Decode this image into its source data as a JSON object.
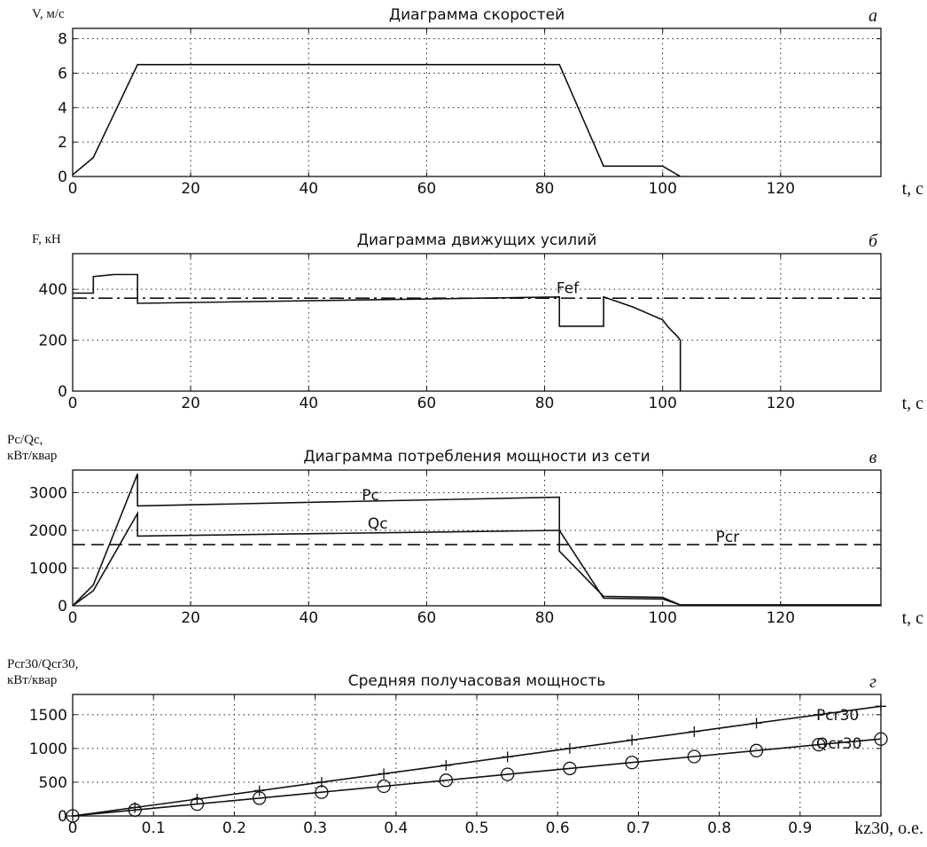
{
  "chart_data": [
    {
      "type": "line",
      "panel_letter": "а",
      "title": "Диаграмма скоростей",
      "ylabel": [
        "V, м/с"
      ],
      "xlabel": "t, с",
      "xlim": [
        0,
        137
      ],
      "ylim": [
        0,
        8.6
      ],
      "xticks": [
        0,
        20,
        40,
        60,
        80,
        100,
        120
      ],
      "yticks": [
        0,
        2,
        4,
        6,
        8
      ],
      "grid": true,
      "series": [
        {
          "style": "solid",
          "x": [
            0,
            3.5,
            11,
            82.5,
            90,
            100,
            101,
            103
          ],
          "y": [
            0.1,
            1.1,
            6.5,
            6.5,
            0.6,
            0.6,
            0.4,
            0
          ]
        }
      ]
    },
    {
      "type": "line",
      "panel_letter": "б",
      "title": "Диаграмма движущих усилий",
      "ylabel": [
        "F, кН"
      ],
      "xlabel": "t, с",
      "xlim": [
        0,
        137
      ],
      "ylim": [
        0,
        540
      ],
      "xticks": [
        0,
        20,
        40,
        60,
        80,
        100,
        120
      ],
      "yticks": [
        0,
        200,
        400
      ],
      "grid": true,
      "annotations": [
        {
          "text": "Fef",
          "x": 82,
          "y": 385
        }
      ],
      "series": [
        {
          "style": "solid",
          "x": [
            0,
            3.5,
            3.5,
            7,
            11,
            11,
            82.5,
            82.5,
            90,
            90,
            95,
            100,
            101,
            102.5,
            102.5,
            103,
            103
          ],
          "y": [
            385,
            385,
            450,
            458,
            458,
            345,
            370,
            255,
            255,
            370,
            330,
            280,
            250,
            215,
            215,
            200,
            0
          ]
        },
        {
          "name": "Fef",
          "style": "dashdot",
          "x": [
            0,
            137
          ],
          "y": [
            365,
            365
          ]
        }
      ]
    },
    {
      "type": "line",
      "panel_letter": "в",
      "title": "Диаграмма потребления мощности из сети",
      "ylabel": [
        "Pc/Qc,",
        "кВт/квар"
      ],
      "xlabel": "t, с",
      "xlim": [
        0,
        137
      ],
      "ylim": [
        0,
        3600
      ],
      "xticks": [
        0,
        20,
        40,
        60,
        80,
        100,
        120
      ],
      "yticks": [
        0,
        1000,
        2000,
        3000
      ],
      "grid": true,
      "annotations": [
        {
          "text": "Pc",
          "x": 49,
          "y": 2800
        },
        {
          "text": "Qc",
          "x": 50,
          "y": 2050
        },
        {
          "text": "Pcr",
          "x": 109,
          "y": 1700
        }
      ],
      "series": [
        {
          "name": "Pc",
          "style": "solid",
          "x": [
            0,
            3.5,
            11,
            11,
            82.5,
            82.5,
            90,
            100,
            103,
            137
          ],
          "y": [
            0,
            550,
            3500,
            2650,
            2880,
            1450,
            250,
            220,
            20,
            20
          ]
        },
        {
          "name": "Qc",
          "style": "solid",
          "x": [
            0,
            3.5,
            11,
            11,
            82.5,
            90,
            100,
            103,
            137
          ],
          "y": [
            0,
            400,
            2450,
            1850,
            2000,
            200,
            180,
            20,
            20
          ]
        },
        {
          "name": "Pcr",
          "style": "dashed",
          "x": [
            0,
            137
          ],
          "y": [
            1620,
            1620
          ]
        }
      ]
    },
    {
      "type": "line",
      "panel_letter": "г",
      "title": "Средняя получасовая мощность",
      "ylabel": [
        "Pcr30/Qcr30,",
        "кВт/квар"
      ],
      "xlabel": "kz30, о.е.",
      "xlim": [
        0,
        1
      ],
      "ylim": [
        0,
        1800
      ],
      "xticks": [
        0,
        0.1,
        0.2,
        0.3,
        0.4,
        0.5,
        0.6,
        0.7,
        0.8,
        0.9
      ],
      "yticks": [
        0,
        500,
        1000,
        1500
      ],
      "grid": true,
      "annotations": [
        {
          "text": "Pcr30",
          "x": 0.92,
          "y": 1420
        },
        {
          "text": "Qcr30",
          "x": 0.92,
          "y": 1000
        }
      ],
      "series": [
        {
          "name": "Pcr30",
          "style": "solid",
          "marker": "plus",
          "x": [
            0,
            0.077,
            0.154,
            0.231,
            0.308,
            0.385,
            0.462,
            0.538,
            0.615,
            0.692,
            0.769,
            0.846,
            0.923,
            1.0
          ],
          "y": [
            0,
            125,
            250,
            375,
            500,
            625,
            750,
            875,
            1000,
            1125,
            1250,
            1375,
            1500,
            1625
          ]
        },
        {
          "name": "Qcr30",
          "style": "solid",
          "marker": "circle",
          "x": [
            0,
            0.077,
            0.154,
            0.231,
            0.308,
            0.385,
            0.462,
            0.538,
            0.615,
            0.692,
            0.769,
            0.846,
            0.923,
            1.0
          ],
          "y": [
            0,
            88,
            176,
            264,
            352,
            440,
            528,
            616,
            704,
            792,
            880,
            968,
            1056,
            1140
          ]
        }
      ]
    }
  ]
}
